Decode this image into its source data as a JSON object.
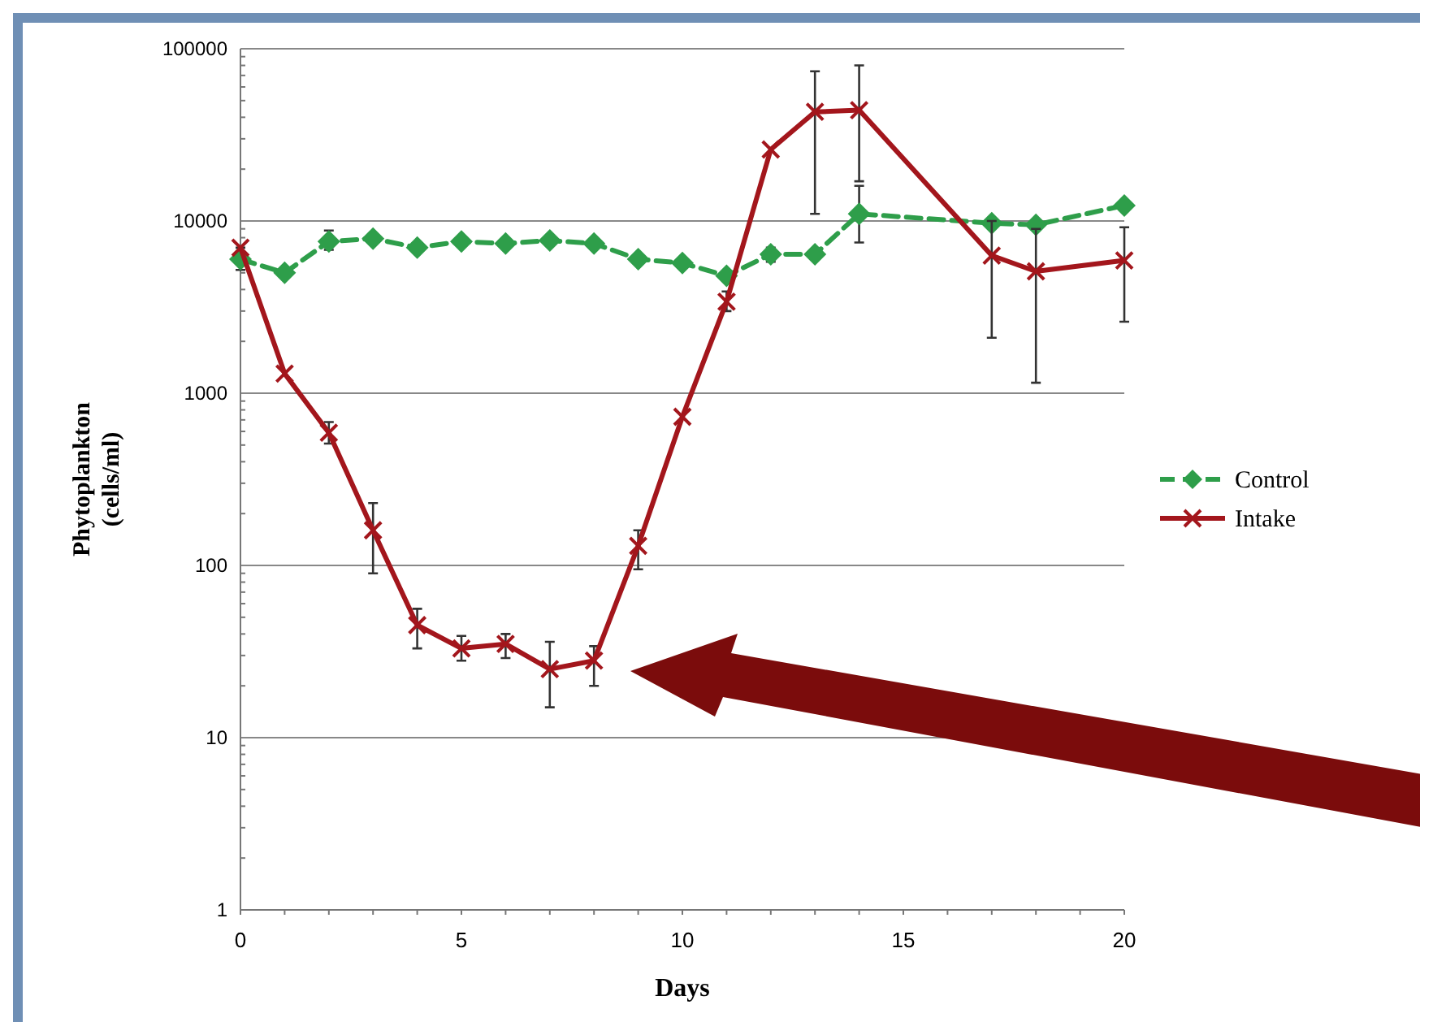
{
  "chart_data": {
    "type": "line",
    "xlabel": "Days",
    "ylabel": "Phytoplankton (cells/ml)",
    "log": "y",
    "grid": "y",
    "legend": "right",
    "xlim": [
      0,
      20
    ],
    "xticks": [
      0,
      5,
      10,
      15,
      20
    ],
    "ylim": [
      1,
      100000
    ],
    "yticks": [
      1,
      10,
      100,
      1000,
      10000,
      100000
    ],
    "series": [
      {
        "name": "Control",
        "color": "#2e9e4a",
        "marker": "diamond",
        "line_style": "dashed",
        "x": [
          0,
          1,
          2,
          3,
          4,
          5,
          6,
          7,
          8,
          9,
          10,
          11,
          12,
          13,
          14,
          17,
          18,
          20
        ],
        "values": [
          6000,
          5000,
          7600,
          7900,
          7000,
          7600,
          7400,
          7700,
          7400,
          6000,
          5700,
          4800,
          6400,
          6400,
          11000,
          9700,
          9500,
          12300
        ],
        "errors": [
          [
            5200,
            7000
          ],
          null,
          [
            6800,
            8800
          ],
          null,
          null,
          null,
          null,
          null,
          null,
          null,
          null,
          null,
          [
            5800,
            7000
          ],
          null,
          [
            7500,
            16000
          ],
          null,
          null,
          null
        ]
      },
      {
        "name": "Intake",
        "color": "#a3161c",
        "marker": "cross",
        "line_style": "solid",
        "x": [
          0,
          1,
          2,
          3,
          4,
          5,
          6,
          7,
          8,
          9,
          10,
          11,
          12,
          13,
          14,
          17,
          18,
          20
        ],
        "values": [
          7000,
          1300,
          590,
          160,
          45,
          33,
          35,
          25,
          28,
          130,
          730,
          3400,
          26000,
          43000,
          44000,
          6300,
          5100,
          5900
        ],
        "errors": [
          null,
          null,
          [
            510,
            680
          ],
          [
            90,
            230
          ],
          [
            33,
            56
          ],
          [
            28,
            39
          ],
          [
            29,
            40
          ],
          [
            15,
            36
          ],
          [
            20,
            34
          ],
          [
            95,
            160
          ],
          null,
          [
            3000,
            3900
          ],
          null,
          [
            11000,
            74000
          ],
          [
            17000,
            80000
          ],
          [
            2100,
            10000
          ],
          [
            1150,
            9000
          ],
          [
            2600,
            9200
          ]
        ]
      }
    ]
  }
}
